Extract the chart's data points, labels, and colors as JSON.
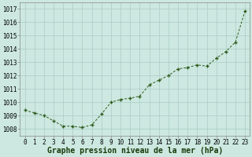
{
  "x": [
    0,
    1,
    2,
    3,
    4,
    5,
    6,
    7,
    8,
    9,
    10,
    11,
    12,
    13,
    14,
    15,
    16,
    17,
    18,
    19,
    20,
    21,
    22,
    23
  ],
  "y": [
    1009.4,
    1009.2,
    1009.0,
    1008.6,
    1008.2,
    1008.2,
    1008.1,
    1008.3,
    1009.1,
    1010.0,
    1010.2,
    1010.3,
    1010.45,
    1011.3,
    1011.65,
    1012.0,
    1012.5,
    1012.6,
    1012.8,
    1012.7,
    1013.3,
    1013.8,
    1014.5,
    1016.85
  ],
  "xlabel": "Graphe pression niveau de la mer (hPa)",
  "line_color": "#2d5a1b",
  "marker_color": "#2d5a1b",
  "background_color": "#cce8e0",
  "grid_color": "#aaccc5",
  "ylim": [
    1007.5,
    1017.5
  ],
  "xlim": [
    -0.5,
    23.5
  ],
  "yticks": [
    1008,
    1009,
    1010,
    1011,
    1012,
    1013,
    1014,
    1015,
    1016,
    1017
  ],
  "xtick_labels": [
    "0",
    "1",
    "2",
    "3",
    "4",
    "5",
    "6",
    "7",
    "8",
    "9",
    "10",
    "11",
    "12",
    "13",
    "14",
    "15",
    "16",
    "17",
    "18",
    "19",
    "20",
    "21",
    "22",
    "23"
  ],
  "tick_fontsize": 5.5,
  "xlabel_fontsize": 7.0,
  "line_width": 0.7,
  "marker_size": 3.5
}
